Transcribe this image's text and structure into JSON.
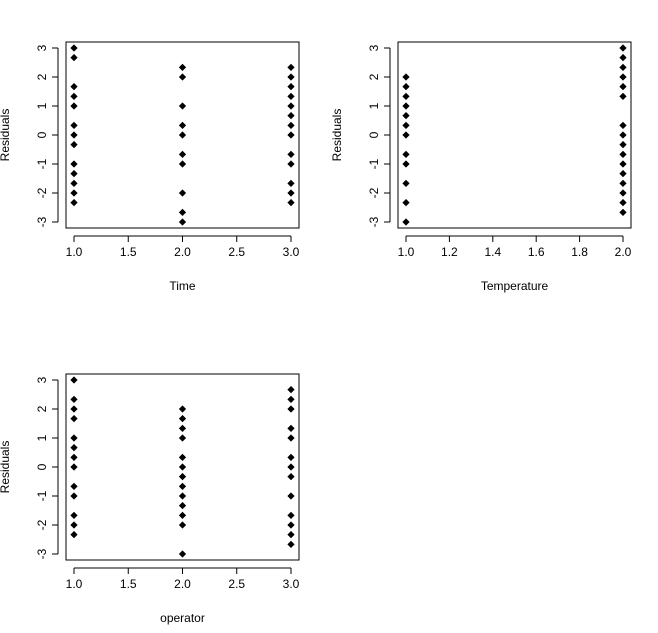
{
  "chart_data": [
    {
      "type": "scatter",
      "title": "",
      "xlabel": "Time",
      "ylabel": "Residuals",
      "xlim": [
        1.0,
        3.0
      ],
      "ylim": [
        -3,
        3
      ],
      "xticks": [
        "1.0",
        "1.5",
        "2.0",
        "2.5",
        "3.0"
      ],
      "xtick_values": [
        1.0,
        1.5,
        2.0,
        2.5,
        3.0
      ],
      "yticks": [
        "-3",
        "-2",
        "-1",
        "0",
        "1",
        "2",
        "3"
      ],
      "ytick_values": [
        -3,
        -2,
        -1,
        0,
        1,
        2,
        3
      ],
      "grid": false,
      "marker_color": "#000000",
      "points": [
        [
          1,
          3.0
        ],
        [
          1,
          2.67
        ],
        [
          1,
          1.67
        ],
        [
          1,
          1.33
        ],
        [
          1,
          1.0
        ],
        [
          1,
          0.33
        ],
        [
          1,
          0.0
        ],
        [
          1,
          -0.33
        ],
        [
          1,
          -1.0
        ],
        [
          1,
          -1.33
        ],
        [
          1,
          -1.67
        ],
        [
          1,
          -2.0
        ],
        [
          1,
          -2.33
        ],
        [
          2,
          2.33
        ],
        [
          2,
          2.0
        ],
        [
          2,
          1.0
        ],
        [
          2,
          0.33
        ],
        [
          2,
          0.0
        ],
        [
          2,
          -0.67
        ],
        [
          2,
          -1.0
        ],
        [
          2,
          -2.0
        ],
        [
          2,
          -2.67
        ],
        [
          2,
          -3.0
        ],
        [
          3,
          2.33
        ],
        [
          3,
          2.0
        ],
        [
          3,
          1.67
        ],
        [
          3,
          1.33
        ],
        [
          3,
          1.0
        ],
        [
          3,
          0.67
        ],
        [
          3,
          0.33
        ],
        [
          3,
          0.0
        ],
        [
          3,
          -0.67
        ],
        [
          3,
          -1.0
        ],
        [
          3,
          -1.67
        ],
        [
          3,
          -2.0
        ],
        [
          3,
          -2.33
        ]
      ]
    },
    {
      "type": "scatter",
      "title": "",
      "xlabel": "Temperature",
      "ylabel": "Residuals",
      "xlim": [
        1.0,
        2.0
      ],
      "ylim": [
        -3,
        3
      ],
      "xticks": [
        "1.0",
        "1.2",
        "1.4",
        "1.6",
        "1.8",
        "2.0"
      ],
      "xtick_values": [
        1.0,
        1.2,
        1.4,
        1.6,
        1.8,
        2.0
      ],
      "yticks": [
        "-3",
        "-2",
        "-1",
        "0",
        "1",
        "2",
        "3"
      ],
      "ytick_values": [
        -3,
        -2,
        -1,
        0,
        1,
        2,
        3
      ],
      "grid": false,
      "marker_color": "#000000",
      "points": [
        [
          1,
          2.0
        ],
        [
          1,
          1.67
        ],
        [
          1,
          1.33
        ],
        [
          1,
          1.0
        ],
        [
          1,
          0.67
        ],
        [
          1,
          0.33
        ],
        [
          1,
          0.0
        ],
        [
          1,
          -0.67
        ],
        [
          1,
          -1.0
        ],
        [
          1,
          -1.67
        ],
        [
          1,
          -2.33
        ],
        [
          1,
          -3.0
        ],
        [
          2,
          3.0
        ],
        [
          2,
          2.67
        ],
        [
          2,
          2.33
        ],
        [
          2,
          2.0
        ],
        [
          2,
          1.67
        ],
        [
          2,
          1.33
        ],
        [
          2,
          0.33
        ],
        [
          2,
          0.0
        ],
        [
          2,
          -0.33
        ],
        [
          2,
          -0.67
        ],
        [
          2,
          -1.0
        ],
        [
          2,
          -1.33
        ],
        [
          2,
          -1.67
        ],
        [
          2,
          -2.0
        ],
        [
          2,
          -2.33
        ],
        [
          2,
          -2.67
        ]
      ]
    },
    {
      "type": "scatter",
      "title": "",
      "xlabel": "operator",
      "ylabel": "Residuals",
      "xlim": [
        1.0,
        3.0
      ],
      "ylim": [
        -3,
        3
      ],
      "xticks": [
        "1.0",
        "1.5",
        "2.0",
        "2.5",
        "3.0"
      ],
      "xtick_values": [
        1.0,
        1.5,
        2.0,
        2.5,
        3.0
      ],
      "yticks": [
        "-3",
        "-2",
        "-1",
        "0",
        "1",
        "2",
        "3"
      ],
      "ytick_values": [
        -3,
        -2,
        -1,
        0,
        1,
        2,
        3
      ],
      "grid": false,
      "marker_color": "#000000",
      "points": [
        [
          1,
          3.0
        ],
        [
          1,
          2.33
        ],
        [
          1,
          2.0
        ],
        [
          1,
          1.67
        ],
        [
          1,
          1.0
        ],
        [
          1,
          0.67
        ],
        [
          1,
          0.33
        ],
        [
          1,
          0.0
        ],
        [
          1,
          -0.67
        ],
        [
          1,
          -1.0
        ],
        [
          1,
          -1.67
        ],
        [
          1,
          -2.0
        ],
        [
          1,
          -2.33
        ],
        [
          2,
          2.0
        ],
        [
          2,
          1.67
        ],
        [
          2,
          1.33
        ],
        [
          2,
          1.0
        ],
        [
          2,
          0.33
        ],
        [
          2,
          0.0
        ],
        [
          2,
          -0.33
        ],
        [
          2,
          -0.67
        ],
        [
          2,
          -1.0
        ],
        [
          2,
          -1.33
        ],
        [
          2,
          -1.67
        ],
        [
          2,
          -2.0
        ],
        [
          2,
          -3.0
        ],
        [
          3,
          2.67
        ],
        [
          3,
          2.33
        ],
        [
          3,
          2.0
        ],
        [
          3,
          1.33
        ],
        [
          3,
          1.0
        ],
        [
          3,
          0.33
        ],
        [
          3,
          0.0
        ],
        [
          3,
          -0.33
        ],
        [
          3,
          -1.0
        ],
        [
          3,
          -1.67
        ],
        [
          3,
          -2.0
        ],
        [
          3,
          -2.33
        ],
        [
          3,
          -2.67
        ]
      ]
    }
  ]
}
